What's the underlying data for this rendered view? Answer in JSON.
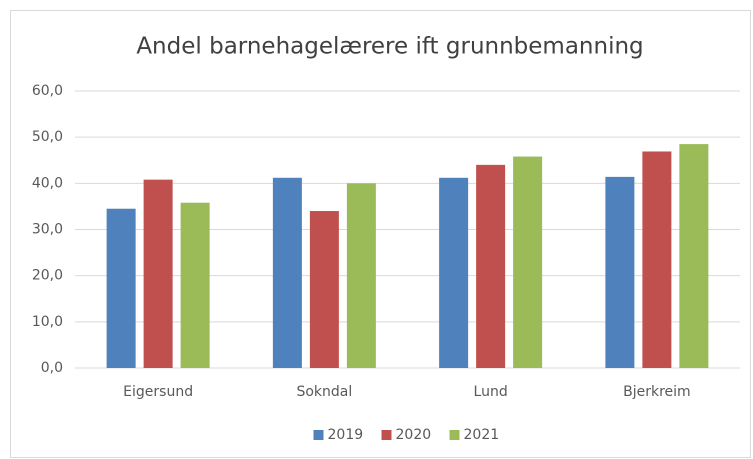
{
  "chart_data": {
    "type": "bar",
    "title": "Andel barnehagelærere ift grunnbemanning",
    "categories": [
      "Eigersund",
      "Sokndal",
      "Lund",
      "Bjerkreim"
    ],
    "series": [
      {
        "name": "2019",
        "color": "#4f81bd",
        "values": [
          34.5,
          41.2,
          41.2,
          41.4
        ]
      },
      {
        "name": "2020",
        "color": "#c0504d",
        "values": [
          40.8,
          34.0,
          44.0,
          46.9
        ]
      },
      {
        "name": "2021",
        "color": "#9bbb59",
        "values": [
          35.8,
          40.0,
          45.8,
          48.5
        ]
      }
    ],
    "ylim": [
      0,
      60
    ],
    "yticks": [
      {
        "value": 0,
        "label": "0,0"
      },
      {
        "value": 10,
        "label": "10,0"
      },
      {
        "value": 20,
        "label": "20,0"
      },
      {
        "value": 30,
        "label": "30,0"
      },
      {
        "value": 40,
        "label": "40,0"
      },
      {
        "value": 50,
        "label": "50,0"
      },
      {
        "value": 60,
        "label": "60,0"
      }
    ],
    "grid": true,
    "legend": "bottom"
  }
}
